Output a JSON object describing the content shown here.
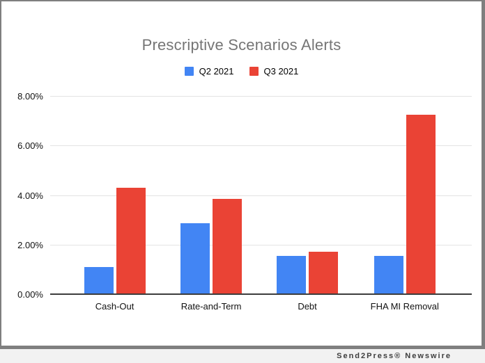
{
  "chart_data": {
    "type": "bar",
    "title": "Prescriptive Scenarios Alerts",
    "categories": [
      "Cash-Out",
      "Rate-and-Term",
      "Debt",
      "FHA MI Removal"
    ],
    "series": [
      {
        "name": "Q2 2021",
        "color": "#4285f4",
        "values": [
          1.1,
          2.85,
          1.55,
          1.55
        ]
      },
      {
        "name": "Q3 2021",
        "color": "#ea4335",
        "values": [
          4.3,
          3.85,
          1.7,
          7.25
        ]
      }
    ],
    "xlabel": "",
    "ylabel": "",
    "ylim": [
      0,
      8
    ],
    "ytick_values": [
      0,
      2,
      4,
      6,
      8
    ],
    "yticks": [
      "0.00%",
      "2.00%",
      "4.00%",
      "6.00%",
      "8.00%"
    ],
    "grid": true,
    "legend_position": "top",
    "group_centers_pct": [
      15.3,
      38.2,
      61.0,
      84.1
    ]
  },
  "footer": {
    "brand": "Send2Press® Newswire"
  }
}
